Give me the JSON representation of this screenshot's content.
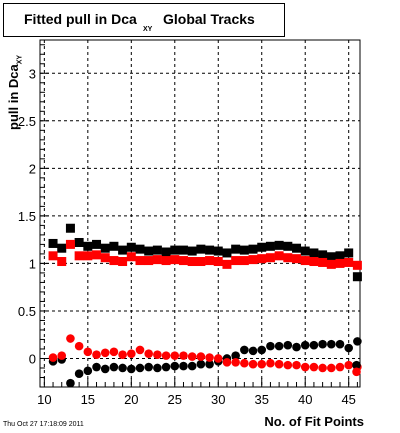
{
  "title": {
    "main": "Fitted pull in Dca",
    "sub": "XY",
    "suffix": "Global Tracks"
  },
  "timestamp": "Thu Oct 27 17:18:09 2011",
  "colors": {
    "black_series": "#000000",
    "red_series": "#ff0000",
    "grid": "#000000"
  },
  "chart_data": {
    "type": "scatter",
    "title": "Fitted pull in Dca XY Global Tracks",
    "xlabel": "No. of Fit Points",
    "ylabel": "pull in Dca",
    "ylabel_sub": "XY",
    "xlim": [
      9.5,
      46.3
    ],
    "ylim": [
      -0.3,
      3.35
    ],
    "xticks": [
      10,
      15,
      20,
      25,
      30,
      35,
      40,
      45
    ],
    "yticks": [
      0,
      0.5,
      1,
      1.5,
      2,
      2.5,
      3
    ],
    "ytick_labels": [
      "0",
      "0.5",
      "1",
      "1.5",
      "2",
      "2.5",
      "3"
    ],
    "grid": true,
    "x": [
      11,
      12,
      13,
      14,
      15,
      16,
      17,
      18,
      19,
      20,
      21,
      22,
      23,
      24,
      25,
      26,
      27,
      28,
      29,
      30,
      31,
      32,
      33,
      34,
      35,
      36,
      37,
      38,
      39,
      40,
      41,
      42,
      43,
      44,
      45,
      46
    ],
    "series": [
      {
        "marker": "square",
        "color": "#000000",
        "values": [
          1.21,
          1.16,
          1.37,
          1.22,
          1.18,
          1.2,
          1.16,
          1.18,
          1.14,
          1.17,
          1.15,
          1.13,
          1.14,
          1.12,
          1.14,
          1.14,
          1.13,
          1.15,
          1.14,
          1.13,
          1.11,
          1.15,
          1.14,
          1.15,
          1.17,
          1.18,
          1.19,
          1.18,
          1.16,
          1.13,
          1.11,
          1.09,
          1.07,
          1.08,
          1.11,
          0.86
        ]
      },
      {
        "marker": "square",
        "color": "#ff0000",
        "values": [
          1.08,
          1.02,
          1.2,
          1.08,
          1.08,
          1.09,
          1.06,
          1.03,
          1.02,
          1.07,
          1.03,
          1.03,
          1.04,
          1.03,
          1.04,
          1.03,
          1.02,
          1.02,
          1.03,
          1.02,
          0.99,
          1.03,
          1.03,
          1.04,
          1.05,
          1.06,
          1.08,
          1.06,
          1.05,
          1.03,
          1.02,
          1.01,
          0.99,
          1.0,
          1.01,
          0.98
        ]
      },
      {
        "marker": "circle",
        "color": "#000000",
        "values": [
          -0.03,
          -0.01,
          -0.26,
          -0.16,
          -0.13,
          -0.09,
          -0.11,
          -0.09,
          -0.1,
          -0.11,
          -0.1,
          -0.09,
          -0.1,
          -0.09,
          -0.08,
          -0.08,
          -0.08,
          -0.06,
          -0.06,
          -0.03,
          0.0,
          0.03,
          0.09,
          0.08,
          0.09,
          0.13,
          0.13,
          0.14,
          0.12,
          0.14,
          0.14,
          0.15,
          0.15,
          0.15,
          0.11,
          0.18
        ]
      },
      {
        "marker": "circle",
        "color": "#ff0000",
        "values": [
          0.01,
          0.03,
          0.21,
          0.13,
          0.07,
          0.04,
          0.06,
          0.07,
          0.04,
          0.05,
          0.09,
          0.05,
          0.04,
          0.03,
          0.03,
          0.03,
          0.02,
          0.02,
          0.01,
          0.0,
          -0.04,
          -0.04,
          -0.05,
          -0.06,
          -0.06,
          -0.05,
          -0.06,
          -0.07,
          -0.07,
          -0.09,
          -0.09,
          -0.1,
          -0.1,
          -0.09,
          -0.07,
          -0.09
        ]
      }
    ],
    "tail_points": [
      {
        "x": 45.9,
        "y": -0.07,
        "marker": "circle",
        "color": "#000000"
      },
      {
        "x": 45.9,
        "y": -0.14,
        "marker": "circle",
        "color": "#ff0000"
      }
    ]
  }
}
